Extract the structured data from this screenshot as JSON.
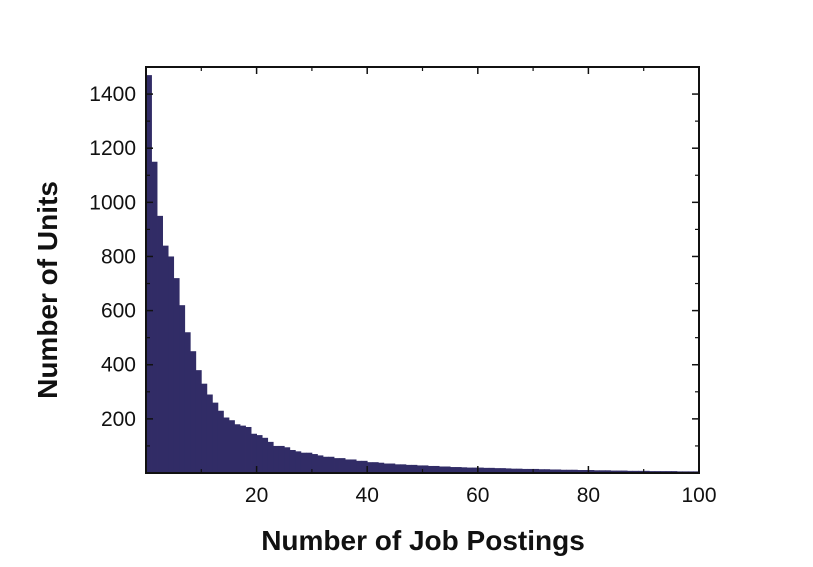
{
  "chart_data": {
    "type": "bar",
    "title": "",
    "xlabel": "Number of Job Postings",
    "ylabel": "Number of Units",
    "xlim": [
      0,
      100
    ],
    "ylim": [
      0,
      1500
    ],
    "xticks": [
      20,
      40,
      60,
      80,
      100
    ],
    "yticks": [
      200,
      400,
      600,
      800,
      1000,
      1200,
      1400
    ],
    "bin_width": 1,
    "bin_starts": [
      0,
      1,
      2,
      3,
      4,
      5,
      6,
      7,
      8,
      9,
      10,
      11,
      12,
      13,
      14,
      15,
      16,
      17,
      18,
      19,
      20,
      21,
      22,
      23,
      24,
      25,
      26,
      27,
      28,
      29,
      30,
      31,
      32,
      33,
      34,
      35,
      36,
      37,
      38,
      39,
      40,
      41,
      42,
      43,
      44,
      45,
      46,
      47,
      48,
      49,
      50,
      51,
      52,
      53,
      54,
      55,
      56,
      57,
      58,
      59,
      60,
      61,
      62,
      63,
      64,
      65,
      66,
      67,
      68,
      69,
      70,
      71,
      72,
      73,
      74,
      75,
      76,
      77,
      78,
      79,
      80,
      81,
      82,
      83,
      84,
      85,
      86,
      87,
      88,
      89,
      90,
      91,
      92,
      93,
      94,
      95,
      96,
      97,
      98,
      99
    ],
    "values": [
      1470,
      1150,
      950,
      840,
      800,
      720,
      620,
      520,
      450,
      380,
      330,
      290,
      260,
      230,
      205,
      195,
      180,
      175,
      170,
      145,
      140,
      130,
      115,
      100,
      100,
      95,
      85,
      80,
      75,
      75,
      70,
      65,
      60,
      60,
      55,
      55,
      50,
      50,
      45,
      45,
      40,
      40,
      38,
      35,
      35,
      32,
      32,
      30,
      30,
      28,
      28,
      26,
      26,
      24,
      24,
      22,
      22,
      21,
      20,
      20,
      20,
      19,
      19,
      18,
      18,
      17,
      16,
      16,
      15,
      15,
      15,
      14,
      14,
      13,
      13,
      12,
      12,
      12,
      11,
      11,
      11,
      10,
      10,
      10,
      9,
      9,
      9,
      8,
      8,
      8,
      8,
      7,
      7,
      7,
      7,
      7,
      6,
      6,
      6,
      6
    ],
    "bar_color": "#312c66",
    "grid": false,
    "legend": false
  }
}
